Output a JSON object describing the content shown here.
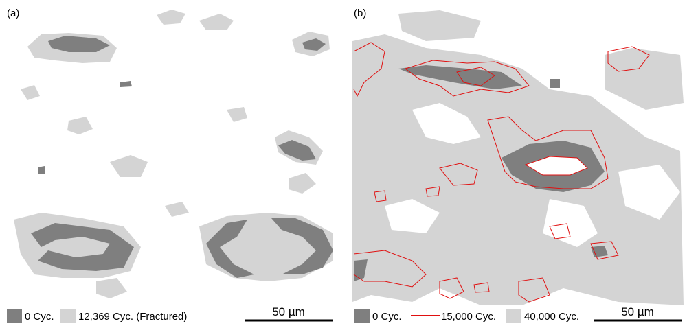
{
  "panels": [
    {
      "label": "(a)",
      "legend": [
        "0 Cyc.",
        "12,369 Cyc. (Fractured)"
      ],
      "scale_bar": "50 µm"
    },
    {
      "label": "(b)",
      "legend": [
        "0 Cyc.",
        "15,000 Cyc.",
        "40,000 Cyc."
      ],
      "scale_bar": "50 µm"
    }
  ]
}
